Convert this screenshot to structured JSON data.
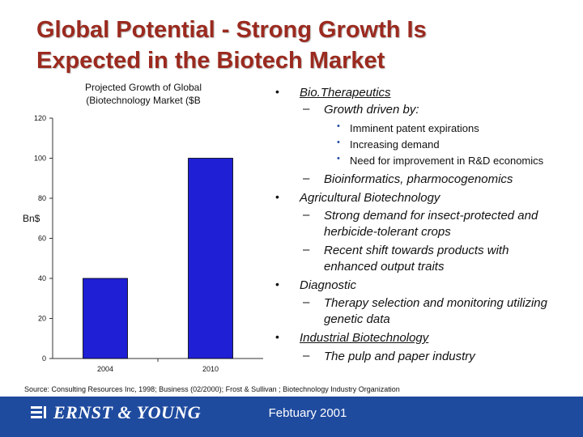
{
  "slide": {
    "title_line1": "Global Potential - Strong Growth Is",
    "title_line2": "Expected in the Biotech Market"
  },
  "chart_data": {
    "type": "bar",
    "title_line1": "Projected Growth of Global",
    "title_line2": "(Biotechnology Market ($B",
    "ylabel": "Bn$",
    "categories": [
      "2004",
      "2010"
    ],
    "values": [
      40,
      100
    ],
    "ylim": [
      0,
      120
    ],
    "yticks": [
      "0",
      "20",
      "40",
      "60",
      "80",
      "100",
      "120"
    ],
    "bar_color": "#1f1fd6",
    "grid": false
  },
  "bullets": [
    {
      "text": "Bio.Therapeutics",
      "underline": true,
      "subs": [
        {
          "text": "Growth driven by:",
          "subs": [
            "Imminent patent expirations",
            "Increasing demand",
            "Need for improvement in R&D economics"
          ]
        },
        {
          "text": "Bioinformatics, pharmocogenomics"
        }
      ]
    },
    {
      "text": "Agricultural Biotechnology",
      "subs": [
        {
          "text": "Strong demand for insect-protected and herbicide-tolerant crops"
        },
        {
          "text": "Recent shift towards products with enhanced output traits"
        }
      ]
    },
    {
      "text": "Diagnostic",
      "subs": [
        {
          "text": "Therapy selection and monitoring utilizing genetic data"
        }
      ]
    },
    {
      "text": "Industrial Biotechnology",
      "underline": true,
      "subs": [
        {
          "text": "The pulp and paper industry"
        }
      ]
    }
  ],
  "sub_bullet_lines": {
    "agri_1a": "Strong demand for insect-protected and",
    "agri_1b": "herbicide-tolerant crops",
    "agri_2a": "Recent shift towards products with",
    "agri_2b": "enhanced output traits",
    "diag_1a": "Therapy selection and monitoring utilizing",
    "diag_1b": "genetic data"
  },
  "source": "Source: Consulting Resources Inc, 1998; Business (02/2000); Frost & Sullivan ; Biotechnology Industry Organization",
  "footer": {
    "logo": "ERNST & YOUNG",
    "date": "Febtuary 2001",
    "color": "#1f4b9f"
  },
  "colors": {
    "title": "#9b2a1f"
  }
}
